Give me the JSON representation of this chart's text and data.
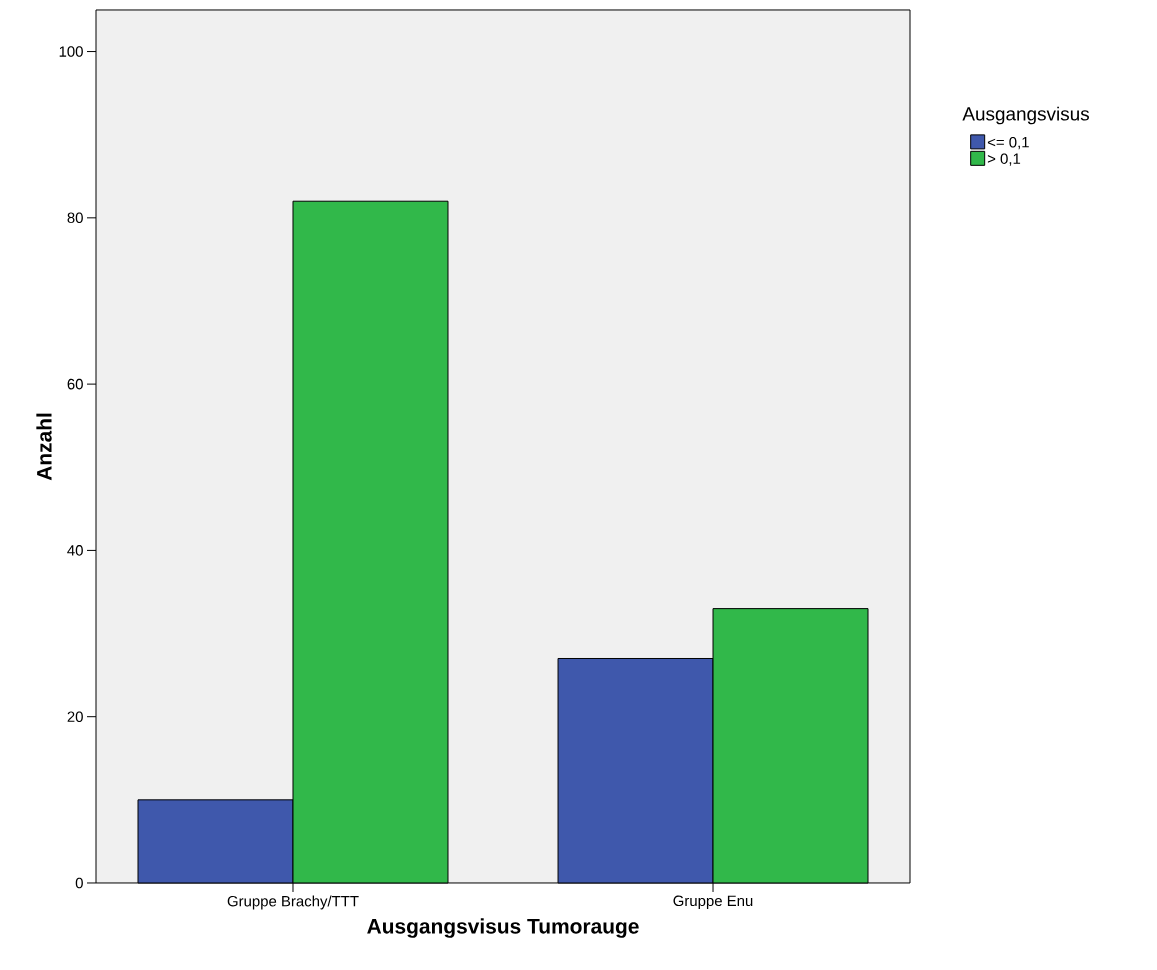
{
  "chart_data": {
    "type": "bar",
    "xlabel": "Ausgangsvisus Tumorauge",
    "ylabel": "Anzahl",
    "legend_title": "Ausgangsvisus",
    "categories": [
      "Gruppe Brachy/TTT",
      "Gruppe Enu"
    ],
    "series": [
      {
        "name": "<= 0,1",
        "color": "#3f58ac",
        "values": [
          10,
          27
        ]
      },
      {
        "name": "> 0,1",
        "color": "#31b84a",
        "values": [
          82,
          33
        ]
      }
    ],
    "ylim": [
      0,
      105
    ],
    "yticks": [
      0,
      20,
      40,
      60,
      80,
      100
    ],
    "legend": "right"
  }
}
